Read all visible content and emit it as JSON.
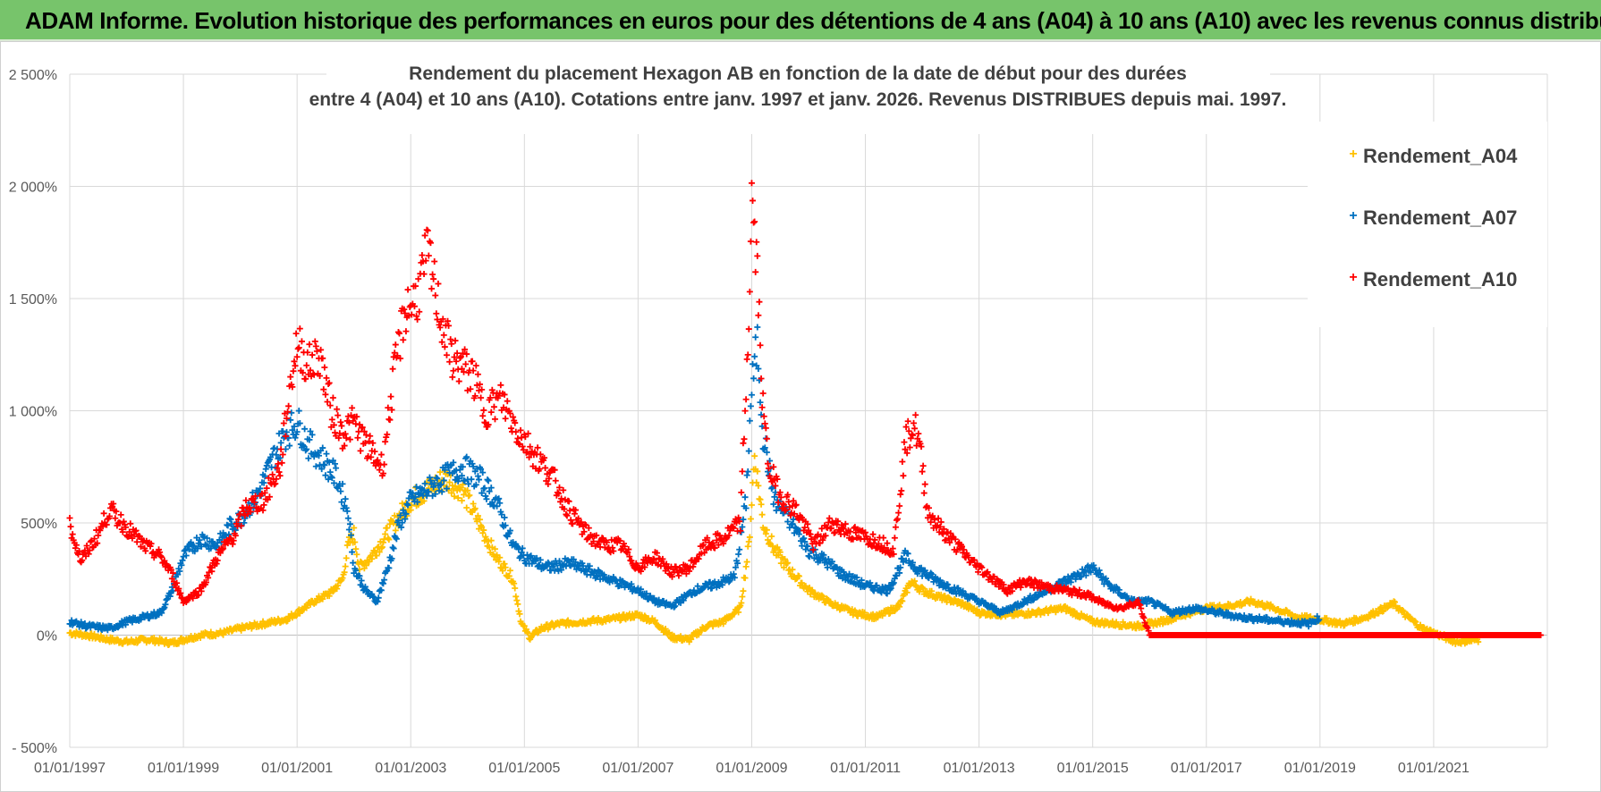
{
  "header": {
    "title": "ADAM Informe. Evolution historique des performances en euros pour des détentions de 4 ans (A04) à 10 ans (A10) avec les revenus connus distribués"
  },
  "chart_data": {
    "type": "scatter",
    "title_line1": "Rendement du placement Hexagon AB en fonction de la date de début pour des durées",
    "title_line2": "entre 4 (A04) et 10 ans (A10). Cotations entre janv. 1997 et janv. 2026. Revenus DISTRIBUES depuis mai. 1997.",
    "xlim": [
      1997.0,
      2023.0
    ],
    "ylim": [
      -500,
      2500
    ],
    "y_ticks": [
      -500,
      0,
      500,
      1000,
      1500,
      2000,
      2500
    ],
    "y_tick_labels": [
      "- 500%",
      "0%",
      "500%",
      "1 000%",
      "1 500%",
      "2 000%",
      "2 500%"
    ],
    "x_ticks": [
      1997,
      1999,
      2001,
      2003,
      2005,
      2007,
      2009,
      2011,
      2013,
      2015,
      2017,
      2019,
      2021
    ],
    "x_tick_labels": [
      "01/01/1997",
      "01/01/1999",
      "01/01/2001",
      "01/01/2003",
      "01/01/2005",
      "01/01/2007",
      "01/01/2009",
      "01/01/2011",
      "01/01/2013",
      "01/01/2015",
      "01/01/2017",
      "01/01/2019",
      "01/01/2021"
    ],
    "legend_position": "top-right",
    "series": [
      {
        "name": "Rendement_A04",
        "color": "#ffc000",
        "points": [
          [
            1997.0,
            10
          ],
          [
            1997.3,
            0
          ],
          [
            1997.7,
            -20
          ],
          [
            1998.0,
            -30
          ],
          [
            1998.4,
            -20
          ],
          [
            1998.8,
            -35
          ],
          [
            1999.0,
            -20
          ],
          [
            1999.3,
            0
          ],
          [
            1999.7,
            10
          ],
          [
            2000.0,
            30
          ],
          [
            2000.4,
            50
          ],
          [
            2000.8,
            70
          ],
          [
            2001.0,
            100
          ],
          [
            2001.3,
            150
          ],
          [
            2001.6,
            190
          ],
          [
            2001.8,
            250
          ],
          [
            2001.9,
            400
          ],
          [
            2002.0,
            450
          ],
          [
            2002.1,
            300
          ],
          [
            2002.3,
            350
          ],
          [
            2002.5,
            420
          ],
          [
            2002.8,
            530
          ],
          [
            2003.0,
            600
          ],
          [
            2003.3,
            650
          ],
          [
            2003.6,
            700
          ],
          [
            2003.9,
            650
          ],
          [
            2004.2,
            500
          ],
          [
            2004.5,
            350
          ],
          [
            2004.8,
            250
          ],
          [
            2004.95,
            50
          ],
          [
            2005.1,
            -10
          ],
          [
            2005.3,
            30
          ],
          [
            2005.6,
            50
          ],
          [
            2006.0,
            60
          ],
          [
            2006.5,
            70
          ],
          [
            2007.0,
            90
          ],
          [
            2007.3,
            60
          ],
          [
            2007.6,
            -10
          ],
          [
            2007.9,
            -20
          ],
          [
            2008.2,
            40
          ],
          [
            2008.5,
            60
          ],
          [
            2008.8,
            120
          ],
          [
            2008.95,
            400
          ],
          [
            2009.05,
            800
          ],
          [
            2009.2,
            500
          ],
          [
            2009.4,
            380
          ],
          [
            2009.7,
            280
          ],
          [
            2010.0,
            200
          ],
          [
            2010.4,
            140
          ],
          [
            2010.8,
            100
          ],
          [
            2011.2,
            80
          ],
          [
            2011.6,
            130
          ],
          [
            2011.8,
            240
          ],
          [
            2012.0,
            200
          ],
          [
            2012.3,
            170
          ],
          [
            2012.7,
            140
          ],
          [
            2013.0,
            100
          ],
          [
            2013.5,
            90
          ],
          [
            2014.0,
            100
          ],
          [
            2014.5,
            120
          ],
          [
            2015.0,
            60
          ],
          [
            2015.4,
            50
          ],
          [
            2015.8,
            40
          ],
          [
            2016.2,
            60
          ],
          [
            2016.6,
            90
          ],
          [
            2017.0,
            120
          ],
          [
            2017.4,
            130
          ],
          [
            2017.8,
            150
          ],
          [
            2018.2,
            120
          ],
          [
            2018.6,
            80
          ],
          [
            2019.0,
            70
          ],
          [
            2019.4,
            50
          ],
          [
            2019.8,
            80
          ],
          [
            2020.3,
            140
          ],
          [
            2020.5,
            90
          ],
          [
            2020.8,
            30
          ],
          [
            2021.0,
            10
          ],
          [
            2021.4,
            -30
          ],
          [
            2021.8,
            -20
          ]
        ]
      },
      {
        "name": "Rendement_A07",
        "color": "#0070c0",
        "points": [
          [
            1997.0,
            60
          ],
          [
            1997.3,
            40
          ],
          [
            1997.7,
            30
          ],
          [
            1998.0,
            60
          ],
          [
            1998.3,
            80
          ],
          [
            1998.6,
            100
          ],
          [
            1998.8,
            200
          ],
          [
            1999.0,
            350
          ],
          [
            1999.3,
            430
          ],
          [
            1999.6,
            400
          ],
          [
            1999.8,
            480
          ],
          [
            2000.0,
            520
          ],
          [
            2000.3,
            620
          ],
          [
            2000.6,
            800
          ],
          [
            2000.8,
            900
          ],
          [
            2001.0,
            950
          ],
          [
            2001.2,
            850
          ],
          [
            2001.4,
            800
          ],
          [
            2001.7,
            700
          ],
          [
            2001.9,
            550
          ],
          [
            2002.0,
            300
          ],
          [
            2002.2,
            200
          ],
          [
            2002.4,
            150
          ],
          [
            2002.6,
            300
          ],
          [
            2002.8,
            500
          ],
          [
            2003.0,
            600
          ],
          [
            2003.3,
            650
          ],
          [
            2003.6,
            700
          ],
          [
            2003.9,
            750
          ],
          [
            2004.2,
            700
          ],
          [
            2004.5,
            600
          ],
          [
            2004.8,
            400
          ],
          [
            2005.0,
            350
          ],
          [
            2005.4,
            300
          ],
          [
            2005.8,
            320
          ],
          [
            2006.2,
            280
          ],
          [
            2006.6,
            240
          ],
          [
            2007.0,
            200
          ],
          [
            2007.3,
            150
          ],
          [
            2007.6,
            130
          ],
          [
            2008.0,
            200
          ],
          [
            2008.4,
            230
          ],
          [
            2008.7,
            260
          ],
          [
            2008.9,
            600
          ],
          [
            2009.0,
            1100
          ],
          [
            2009.1,
            1300
          ],
          [
            2009.2,
            900
          ],
          [
            2009.4,
            600
          ],
          [
            2009.7,
            500
          ],
          [
            2010.0,
            380
          ],
          [
            2010.3,
            330
          ],
          [
            2010.6,
            270
          ],
          [
            2011.0,
            220
          ],
          [
            2011.4,
            200
          ],
          [
            2011.7,
            350
          ],
          [
            2011.9,
            300
          ],
          [
            2012.2,
            250
          ],
          [
            2012.6,
            200
          ],
          [
            2013.0,
            150
          ],
          [
            2013.4,
            100
          ],
          [
            2013.8,
            150
          ],
          [
            2014.2,
            200
          ],
          [
            2014.6,
            250
          ],
          [
            2015.0,
            300
          ],
          [
            2015.3,
            220
          ],
          [
            2015.7,
            150
          ],
          [
            2016.0,
            150
          ],
          [
            2016.4,
            100
          ],
          [
            2016.8,
            120
          ],
          [
            2017.2,
            100
          ],
          [
            2017.6,
            80
          ],
          [
            2018.0,
            70
          ],
          [
            2018.4,
            60
          ],
          [
            2018.8,
            50
          ],
          [
            2019.0,
            80
          ]
        ]
      },
      {
        "name": "Rendement_A10",
        "color": "#ff0000",
        "points": [
          [
            1997.0,
            490
          ],
          [
            1997.2,
            330
          ],
          [
            1997.5,
            450
          ],
          [
            1997.7,
            560
          ],
          [
            1998.0,
            480
          ],
          [
            1998.3,
            400
          ],
          [
            1998.6,
            350
          ],
          [
            1998.8,
            270
          ],
          [
            1999.0,
            150
          ],
          [
            1999.3,
            200
          ],
          [
            1999.6,
            350
          ],
          [
            1999.9,
            450
          ],
          [
            2000.1,
            570
          ],
          [
            2000.4,
            600
          ],
          [
            2000.7,
            750
          ],
          [
            2000.9,
            1150
          ],
          [
            2001.0,
            1300
          ],
          [
            2001.2,
            1200
          ],
          [
            2001.4,
            1250
          ],
          [
            2001.6,
            1000
          ],
          [
            2001.8,
            900
          ],
          [
            2002.0,
            950
          ],
          [
            2002.2,
            850
          ],
          [
            2002.5,
            750
          ],
          [
            2002.7,
            1150
          ],
          [
            2002.9,
            1450
          ],
          [
            2003.1,
            1500
          ],
          [
            2003.3,
            1700
          ],
          [
            2003.5,
            1450
          ],
          [
            2003.7,
            1250
          ],
          [
            2003.9,
            1200
          ],
          [
            2004.1,
            1150
          ],
          [
            2004.3,
            1000
          ],
          [
            2004.6,
            1050
          ],
          [
            2004.9,
            900
          ],
          [
            2005.2,
            800
          ],
          [
            2005.5,
            700
          ],
          [
            2005.8,
            550
          ],
          [
            2006.1,
            450
          ],
          [
            2006.4,
            400
          ],
          [
            2006.7,
            400
          ],
          [
            2007.0,
            300
          ],
          [
            2007.3,
            350
          ],
          [
            2007.6,
            280
          ],
          [
            2007.9,
            300
          ],
          [
            2008.2,
            400
          ],
          [
            2008.5,
            430
          ],
          [
            2008.8,
            500
          ],
          [
            2008.95,
            1400
          ],
          [
            2009.0,
            1950
          ],
          [
            2009.1,
            1600
          ],
          [
            2009.2,
            1000
          ],
          [
            2009.3,
            750
          ],
          [
            2009.5,
            620
          ],
          [
            2009.8,
            550
          ],
          [
            2010.1,
            400
          ],
          [
            2010.4,
            500
          ],
          [
            2010.8,
            450
          ],
          [
            2011.2,
            420
          ],
          [
            2011.5,
            380
          ],
          [
            2011.7,
            850
          ],
          [
            2011.85,
            950
          ],
          [
            2011.95,
            850
          ],
          [
            2012.1,
            550
          ],
          [
            2012.3,
            480
          ],
          [
            2012.6,
            400
          ],
          [
            2012.9,
            320
          ],
          [
            2013.2,
            260
          ],
          [
            2013.5,
            200
          ],
          [
            2013.8,
            240
          ],
          [
            2014.1,
            220
          ],
          [
            2014.5,
            200
          ],
          [
            2014.9,
            180
          ],
          [
            2015.2,
            140
          ],
          [
            2015.5,
            120
          ],
          [
            2015.8,
            150
          ],
          [
            2016.0,
            0
          ],
          [
            2017.0,
            0
          ],
          [
            2018.0,
            0
          ],
          [
            2019.0,
            0
          ],
          [
            2020.0,
            0
          ],
          [
            2021.0,
            0
          ],
          [
            2022.0,
            0
          ],
          [
            2022.9,
            0
          ]
        ]
      }
    ]
  }
}
